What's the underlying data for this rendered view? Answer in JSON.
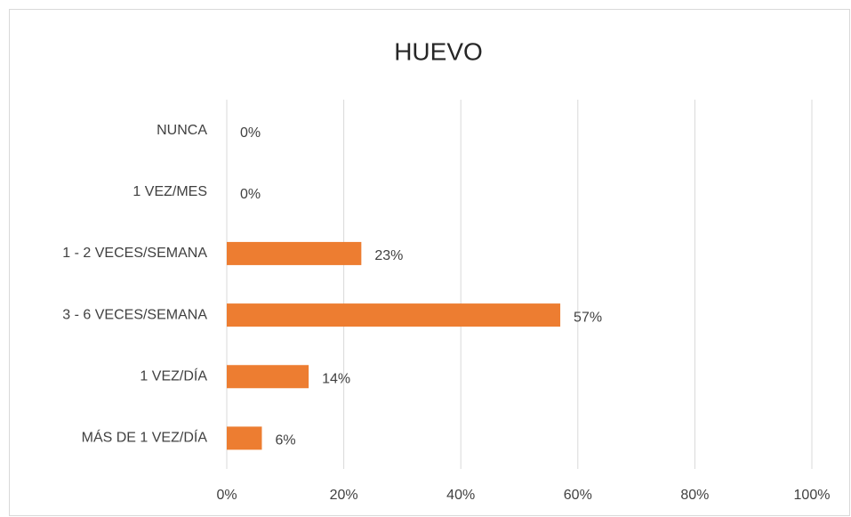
{
  "chart_data": {
    "type": "hbar",
    "title": "HUEVO",
    "categories": [
      "NUNCA",
      "1 VEZ/MES",
      "1 - 2 VECES/SEMANA",
      "3 - 6 VECES/SEMANA",
      "1 VEZ/DÍA",
      "MÁS DE 1 VEZ/DÍA"
    ],
    "values": [
      0,
      0,
      23,
      57,
      14,
      6
    ],
    "value_labels": [
      "0%",
      "0%",
      "23%",
      "57%",
      "14%",
      "6%"
    ],
    "color": "#ed7d31",
    "xlim": [
      0,
      100
    ],
    "xticks": [
      {
        "value": 0,
        "label": "0%"
      },
      {
        "value": 20,
        "label": "20%"
      },
      {
        "value": 40,
        "label": "40%"
      },
      {
        "value": 60,
        "label": "60%"
      },
      {
        "value": 80,
        "label": "80%"
      },
      {
        "value": 100,
        "label": "100%"
      }
    ],
    "grid": true
  }
}
